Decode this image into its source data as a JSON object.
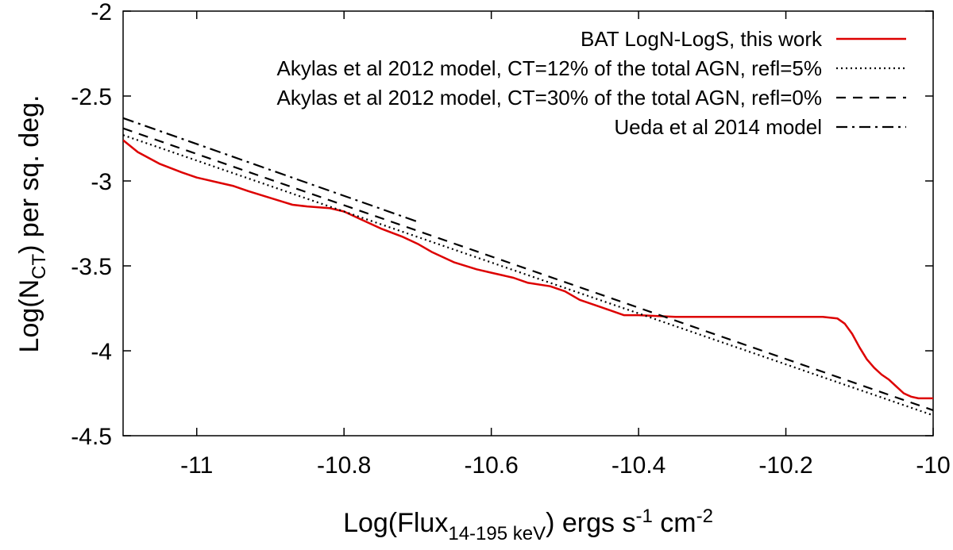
{
  "chart_data": {
    "type": "line",
    "title": "",
    "xlabel": {
      "prefix": "Log(Flux",
      "subscript": "14-195 keV",
      "middle": ") ergs s",
      "sup1": "-1",
      "cm": " cm",
      "sup2": "-2"
    },
    "ylabel": {
      "prefix": "Log(N",
      "subscript": "CT",
      "suffix": ") per sq. deg."
    },
    "xlim": [
      -11.1,
      -10.0
    ],
    "ylim": [
      -4.5,
      -2.0
    ],
    "xticks": [
      {
        "value": -11.0,
        "label": "-11"
      },
      {
        "value": -10.8,
        "label": "-10.8"
      },
      {
        "value": -10.6,
        "label": "-10.6"
      },
      {
        "value": -10.4,
        "label": "-10.4"
      },
      {
        "value": -10.2,
        "label": "-10.2"
      },
      {
        "value": -10.0,
        "label": "-10"
      }
    ],
    "yticks": [
      {
        "value": -2.0,
        "label": "-2"
      },
      {
        "value": -2.5,
        "label": "-2.5"
      },
      {
        "value": -3.0,
        "label": "-3"
      },
      {
        "value": -3.5,
        "label": "-3.5"
      },
      {
        "value": -4.0,
        "label": "-4"
      },
      {
        "value": -4.5,
        "label": "-4.5"
      }
    ],
    "legend_position": "top-right",
    "series": [
      {
        "name": "BAT LogN-LogS, this work",
        "color": "#dd0000",
        "style": "solid",
        "x": [
          -11.1,
          -11.08,
          -11.05,
          -11.02,
          -11.0,
          -10.97,
          -10.95,
          -10.93,
          -10.9,
          -10.87,
          -10.85,
          -10.82,
          -10.8,
          -10.78,
          -10.75,
          -10.72,
          -10.7,
          -10.68,
          -10.65,
          -10.62,
          -10.6,
          -10.57,
          -10.55,
          -10.52,
          -10.5,
          -10.48,
          -10.46,
          -10.44,
          -10.42,
          -10.4,
          -10.35,
          -10.3,
          -10.25,
          -10.2,
          -10.15,
          -10.13,
          -10.12,
          -10.11,
          -10.1,
          -10.09,
          -10.08,
          -10.07,
          -10.06,
          -10.05,
          -10.04,
          -10.03,
          -10.02,
          -10.01,
          -10.0
        ],
        "y": [
          -2.76,
          -2.83,
          -2.9,
          -2.95,
          -2.98,
          -3.01,
          -3.03,
          -3.06,
          -3.1,
          -3.14,
          -3.15,
          -3.16,
          -3.18,
          -3.22,
          -3.28,
          -3.33,
          -3.37,
          -3.42,
          -3.48,
          -3.52,
          -3.54,
          -3.57,
          -3.6,
          -3.62,
          -3.65,
          -3.7,
          -3.73,
          -3.76,
          -3.79,
          -3.79,
          -3.8,
          -3.8,
          -3.8,
          -3.8,
          -3.8,
          -3.81,
          -3.84,
          -3.9,
          -3.98,
          -4.05,
          -4.1,
          -4.14,
          -4.17,
          -4.21,
          -4.25,
          -4.27,
          -4.28,
          -4.28,
          -4.28
        ]
      },
      {
        "name": "Akylas et al 2012 model, CT=12% of the total AGN, refl=5%",
        "color": "#000000",
        "style": "dotted",
        "x": [
          -11.1,
          -10.0
        ],
        "y": [
          -2.73,
          -4.38
        ]
      },
      {
        "name": "Akylas et al 2012 model, CT=30% of the total AGN, refl=0%",
        "color": "#000000",
        "style": "dashed",
        "x": [
          -11.1,
          -10.0
        ],
        "y": [
          -2.69,
          -4.35
        ]
      },
      {
        "name": "Ueda et al 2014 model",
        "color": "#000000",
        "style": "dashdot",
        "x": [
          -11.1,
          -10.7
        ],
        "y": [
          -2.63,
          -3.24
        ]
      }
    ]
  }
}
